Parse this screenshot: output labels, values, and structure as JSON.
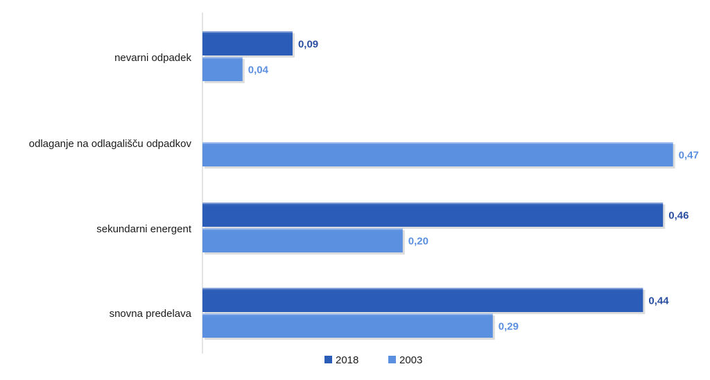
{
  "chart_data": {
    "type": "bar",
    "orientation": "horizontal",
    "categories": [
      "nevarni odpadek",
      "odlaganje na odlagališču odpadkov",
      "sekundarni energent",
      "snovna predelava"
    ],
    "series": [
      {
        "name": "2018",
        "color": "#2a5cb8",
        "values": [
          0.09,
          null,
          0.46,
          0.44
        ],
        "labels": [
          "0,09",
          "",
          "0,46",
          "0,44"
        ]
      },
      {
        "name": "2003",
        "color": "#5b8fe0",
        "values": [
          0.04,
          0.47,
          0.2,
          0.29
        ],
        "labels": [
          "0,04",
          "0,47",
          "0,20",
          "0,29"
        ]
      }
    ],
    "xlim": [
      0,
      0.48
    ],
    "grid": false,
    "legend_position": "bottom",
    "label_colors": {
      "2018": "#2a4fa0",
      "2003": "#5b8fe0"
    }
  }
}
